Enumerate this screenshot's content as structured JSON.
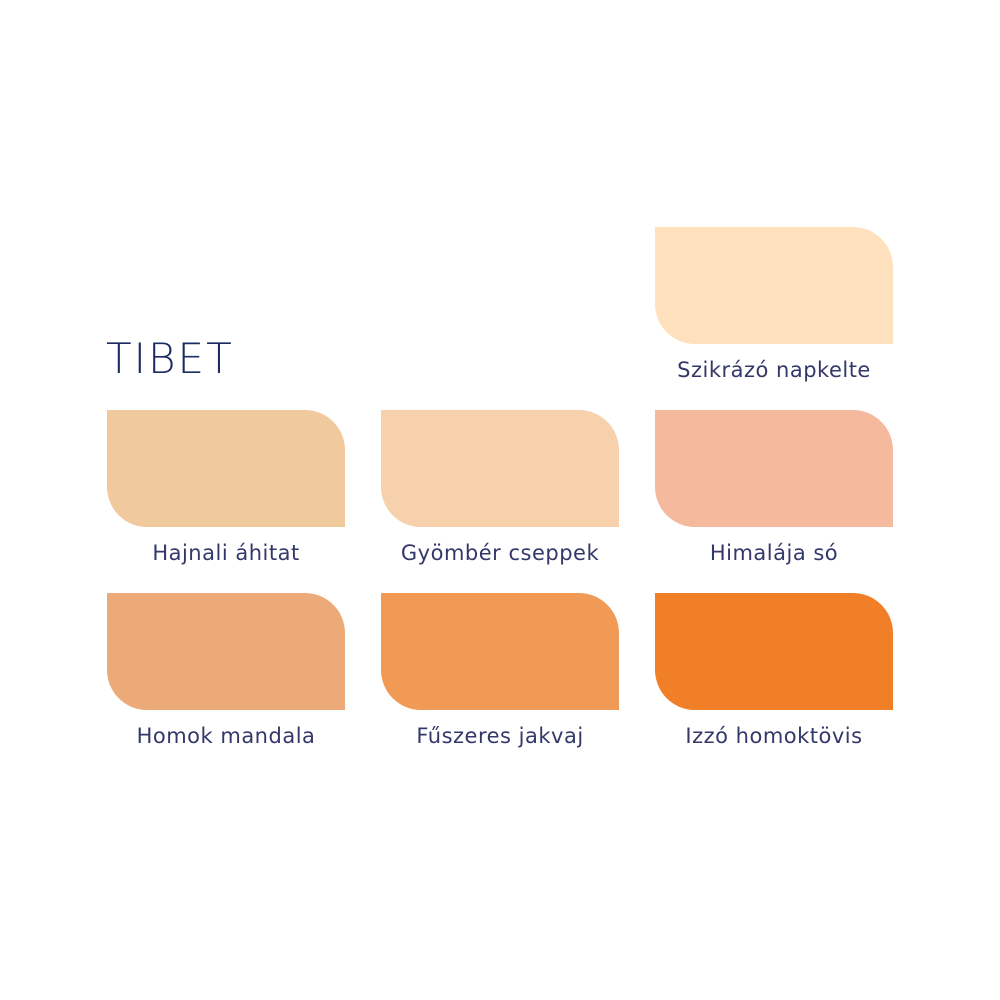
{
  "title": "TIBET",
  "swatches": [
    {
      "name": "Szikrázó napkelte",
      "color": "#FFE2BD"
    },
    {
      "name": "Hajnali áhitat",
      "color": "#F0C99C"
    },
    {
      "name": "Gyömbér cseppek",
      "color": "#F7D0AC"
    },
    {
      "name": "Himalája só",
      "color": "#F5B99D"
    },
    {
      "name": "Homok mandala",
      "color": "#EBAA78"
    },
    {
      "name": "Fűszeres jakvaj",
      "color": "#F19A55"
    },
    {
      "name": "Izzó homoktövis",
      "color": "#F07F28"
    }
  ]
}
